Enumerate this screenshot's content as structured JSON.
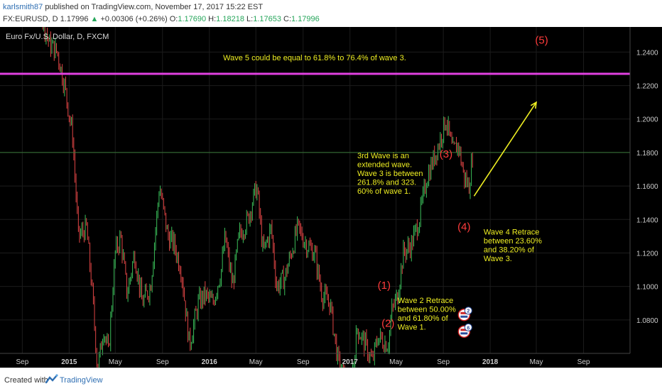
{
  "header": {
    "author": "karlsmith87",
    "published": "published on TradingView.com, November 17, 2017 15:22 EST",
    "symbol": "FX:EURUSD, D",
    "last": "1.17996",
    "change": "+0.00306 (+0.26%)",
    "open_label": "O:",
    "open": "1.17690",
    "high_label": "H:",
    "high": "1.18218",
    "low_label": "L:",
    "low": "1.17653",
    "close_label": "C:",
    "close": "1.17996"
  },
  "footer": {
    "created_with": "Created with",
    "brand": "TradingView"
  },
  "chart_data": {
    "type": "line",
    "title": "Euro Fx/U.S. Dollar, D, FXCM",
    "x_tick_labels": [
      "Sep",
      "2015",
      "May",
      "Sep",
      "2016",
      "May",
      "Sep",
      "2017",
      "May",
      "Sep",
      "2018",
      "May",
      "Sep"
    ],
    "y_tick_labels": [
      "1.2400",
      "1.2200",
      "1.2000",
      "1.1800",
      "1.1600",
      "1.1400",
      "1.1200",
      "1.1000",
      "1.0800"
    ],
    "ylim": [
      1.06,
      1.255
    ],
    "grid": true,
    "series": [
      {
        "dates": [
          "2014-08-01",
          "2014-08-20",
          "2014-09-10",
          "2014-10-01",
          "2014-10-20",
          "2014-11-10",
          "2014-12-01",
          "2014-12-20",
          "2015-01-10",
          "2015-01-25",
          "2015-02-15",
          "2015-03-01",
          "2015-03-16",
          "2015-04-01",
          "2015-04-13",
          "2015-05-01",
          "2015-05-15",
          "2015-06-01",
          "2015-06-20",
          "2015-07-10",
          "2015-08-01",
          "2015-08-24",
          "2015-09-15",
          "2015-10-01",
          "2015-10-20",
          "2015-11-10",
          "2015-12-03",
          "2015-12-20",
          "2016-01-10",
          "2016-02-01",
          "2016-02-11",
          "2016-03-01",
          "2016-03-18",
          "2016-04-10",
          "2016-05-03",
          "2016-05-20",
          "2016-06-10",
          "2016-06-24",
          "2016-07-15",
          "2016-08-18",
          "2016-09-10",
          "2016-10-01",
          "2016-10-20",
          "2016-11-10",
          "2016-12-01",
          "2016-12-20",
          "2017-01-03",
          "2017-01-20",
          "2017-02-10",
          "2017-02-28",
          "2017-03-15",
          "2017-04-10",
          "2017-04-20",
          "2017-05-05",
          "2017-05-20",
          "2017-06-10",
          "2017-06-30",
          "2017-07-20",
          "2017-08-05",
          "2017-08-20",
          "2017-09-08",
          "2017-09-25",
          "2017-10-10",
          "2017-10-25",
          "2017-11-07",
          "2017-11-17"
        ],
        "close": [
          1.34,
          1.32,
          1.29,
          1.265,
          1.263,
          1.245,
          1.24,
          1.22,
          1.19,
          1.13,
          1.135,
          1.1,
          1.05,
          1.075,
          1.06,
          1.12,
          1.13,
          1.095,
          1.12,
          1.09,
          1.1,
          1.16,
          1.13,
          1.125,
          1.11,
          1.065,
          1.09,
          1.095,
          1.09,
          1.11,
          1.13,
          1.1,
          1.13,
          1.14,
          1.16,
          1.12,
          1.135,
          1.1,
          1.105,
          1.135,
          1.125,
          1.12,
          1.095,
          1.09,
          1.055,
          1.045,
          1.04,
          1.075,
          1.065,
          1.055,
          1.07,
          1.065,
          1.085,
          1.095,
          1.12,
          1.125,
          1.14,
          1.165,
          1.175,
          1.185,
          1.2,
          1.18,
          1.185,
          1.165,
          1.16,
          1.18
        ]
      }
    ],
    "hline": {
      "value": 1.227,
      "color": "#e040e0"
    },
    "projection_arrow": {
      "from": [
        "2017-11-20",
        1.154
      ],
      "to": [
        "2018-05-01",
        1.21
      ],
      "color": "#eeee22"
    },
    "wave_labels": [
      {
        "text": "(1)",
        "x": "2017-03-31",
        "y": 1.0985,
        "color": "#ff3b3b"
      },
      {
        "text": "(2)",
        "x": "2017-04-10",
        "y": 1.076,
        "color": "#ff3b3b"
      },
      {
        "text": "(3)",
        "x": "2017-09-08",
        "y": 1.177,
        "color": "#ff3b3b"
      },
      {
        "text": "(4)",
        "x": "2017-10-25",
        "y": 1.1335,
        "color": "#ff3b3b"
      },
      {
        "text": "(5)",
        "x": "2018-05-15",
        "y": 1.245,
        "color": "#ff3b3b"
      }
    ],
    "annotations": [
      {
        "lines": [
          "Wave 5 could be equal to 61.8% to 76.4% of wave 3."
        ],
        "x": "2016-10-01",
        "y": 1.235,
        "color": "#eeee22"
      },
      {
        "lines": [
          "3rd Wave is an",
          "extended wave.",
          "Wave 3 is between",
          "261.8% and 323.",
          "60% of wave 1."
        ],
        "x": "2017-01-20",
        "y": 1.1765,
        "color": "#eeee22"
      },
      {
        "lines": [
          "Wave 4 Retrace",
          "between 23.60%",
          "and 38.20% of",
          "Wave 3."
        ],
        "x": "2017-12-15",
        "y": 1.131,
        "color": "#eeee22"
      },
      {
        "lines": [
          "Wave 2 Retrace",
          "between 50.00%",
          "and 61.80% of",
          "Wave 1."
        ],
        "x": "2017-05-05",
        "y": 1.09,
        "color": "#eeee22"
      }
    ],
    "event_markers": [
      {
        "text": "2",
        "x": "2017-10-25",
        "y": 1.083
      },
      {
        "text": "6",
        "x": "2017-10-25",
        "y": 1.073
      }
    ],
    "colors": {
      "background": "#000000",
      "candle_up": "#3bbf5a",
      "candle_down": "#e04545",
      "grid": "#1c1c1c",
      "axis_text": "#cccccc",
      "price_line": "#3a7a3a"
    }
  }
}
